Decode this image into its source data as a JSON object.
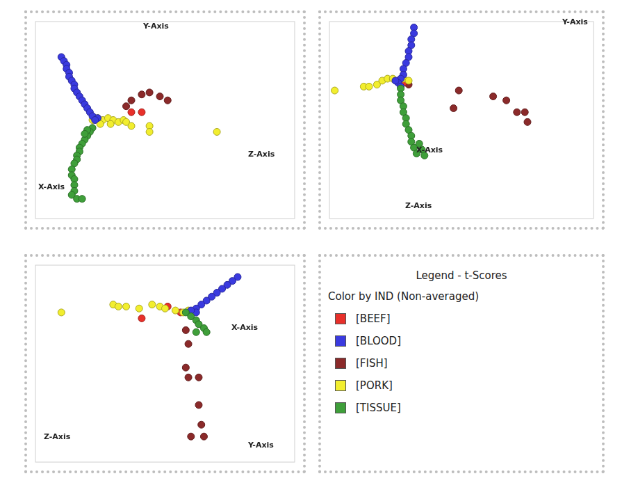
{
  "chart_data": [
    {
      "type": "scatter",
      "axis_titles": [
        "Y-Axis",
        "Z-Axis",
        "X-Axis"
      ],
      "xlim": [
        0,
        100
      ],
      "ylim": [
        0,
        100
      ],
      "grid": false,
      "tick_labels": false,
      "marker": "circle",
      "series": [
        {
          "name": "[TISSUE]",
          "color": "#3f9f3a",
          "x": [
            22,
            21,
            20,
            19,
            18,
            17,
            17,
            16,
            16,
            15,
            14,
            14,
            15,
            15,
            15,
            14,
            16,
            18,
            20,
            19
          ],
          "y": [
            46,
            44,
            42,
            40,
            38,
            36,
            34,
            32,
            30,
            28,
            25,
            22,
            20,
            17,
            14,
            12,
            10,
            10,
            45,
            43
          ]
        },
        {
          "name": "[BLOOD]",
          "color": "#3a3adf",
          "x": [
            10,
            11,
            12,
            12,
            13,
            13,
            14,
            15,
            15,
            16,
            17,
            18,
            19,
            20,
            21,
            22,
            24,
            23
          ],
          "y": [
            82,
            80,
            78,
            76,
            74,
            72,
            70,
            68,
            66,
            64,
            62,
            60,
            58,
            56,
            54,
            52,
            51,
            50
          ]
        },
        {
          "name": "[PORK]",
          "color": "#f2ee2e",
          "x": [
            22,
            24,
            26,
            28,
            30,
            32,
            34,
            35,
            25,
            29,
            37,
            44,
            44,
            70
          ],
          "y": [
            50,
            51,
            50,
            51,
            50,
            49,
            50,
            49,
            48,
            48,
            47,
            47,
            44,
            44
          ]
        },
        {
          "name": "[BEEF]",
          "color": "#e8302a",
          "x": [
            41,
            37
          ],
          "y": [
            54,
            54
          ]
        },
        {
          "name": "[FISH]",
          "color": "#8b2a2a",
          "x": [
            35,
            37,
            41,
            44,
            48,
            51
          ],
          "y": [
            57,
            60,
            63,
            64,
            62,
            60
          ]
        }
      ]
    },
    {
      "type": "scatter",
      "axis_titles": [
        "Y-Axis",
        "X-Axis",
        "Z-Axis"
      ],
      "xlim": [
        0,
        100
      ],
      "ylim": [
        0,
        100
      ],
      "grid": false,
      "tick_labels": false,
      "marker": "circle",
      "series": [
        {
          "name": "[TISSUE]",
          "color": "#3f9f3a",
          "x": [
            27,
            27,
            27,
            28,
            28,
            29,
            29,
            30,
            31,
            31,
            32,
            33,
            34,
            35,
            36
          ],
          "y": [
            66,
            63,
            60,
            57,
            54,
            51,
            48,
            45,
            42,
            39,
            36,
            33,
            38,
            35,
            32
          ]
        },
        {
          "name": "[BLOOD]",
          "color": "#3a3adf",
          "x": [
            32,
            32,
            31,
            31,
            30,
            30,
            29,
            28,
            28,
            27,
            26,
            27,
            25
          ],
          "y": [
            97,
            94,
            91,
            88,
            85,
            82,
            79,
            76,
            73,
            71,
            69,
            67,
            70
          ]
        },
        {
          "name": "[PORK]",
          "color": "#f2ee2e",
          "x": [
            13,
            15,
            18,
            20,
            22,
            24,
            26,
            28,
            30,
            2
          ],
          "y": [
            67,
            67,
            68,
            70,
            71,
            71,
            70,
            71,
            70,
            65
          ]
        },
        {
          "name": "[BEEF]",
          "color": "#e8302a",
          "x": [
            28
          ],
          "y": [
            69
          ]
        },
        {
          "name": "[FISH]",
          "color": "#8b2a2a",
          "x": [
            30,
            49,
            62,
            67,
            71,
            74,
            75,
            47
          ],
          "y": [
            68,
            65,
            62,
            60,
            54,
            54,
            49,
            56
          ]
        }
      ]
    },
    {
      "type": "scatter",
      "axis_titles": [
        "X-Axis",
        "Y-Axis",
        "Z-Axis"
      ],
      "xlim": [
        0,
        100
      ],
      "ylim": [
        0,
        100
      ],
      "grid": false,
      "tick_labels": false,
      "marker": "circle",
      "series": [
        {
          "name": "[TISSUE]",
          "color": "#3f9f3a",
          "x": [
            58,
            60,
            62,
            63,
            65,
            66,
            62
          ],
          "y": [
            76,
            74,
            72,
            70,
            68,
            66,
            66
          ]
        },
        {
          "name": "[BLOOD]",
          "color": "#3a3adf",
          "x": [
            78,
            76,
            74,
            72,
            70,
            68,
            66,
            64,
            62,
            62,
            60
          ],
          "y": [
            94,
            92,
            90,
            88,
            86,
            84,
            82,
            80,
            78,
            76,
            77
          ]
        },
        {
          "name": "[PORK]",
          "color": "#f2ee2e",
          "x": [
            10,
            30,
            32,
            35,
            40,
            45,
            48,
            50,
            54,
            57,
            59
          ],
          "y": [
            76,
            80,
            79,
            79,
            78,
            80,
            79,
            78,
            77,
            76,
            77
          ]
        },
        {
          "name": "[BEEF]",
          "color": "#e8302a",
          "x": [
            41,
            51,
            56
          ],
          "y": [
            73,
            79,
            76
          ]
        },
        {
          "name": "[FISH]",
          "color": "#8b2a2a",
          "x": [
            58,
            59,
            58,
            59,
            63,
            63,
            64,
            60,
            65
          ],
          "y": [
            67,
            60,
            48,
            43,
            43,
            29,
            19,
            13,
            13
          ]
        }
      ]
    }
  ],
  "legend_panel": {
    "title": "Legend - t-Scores",
    "subtitle": "Color by IND (Non-averaged)"
  }
}
